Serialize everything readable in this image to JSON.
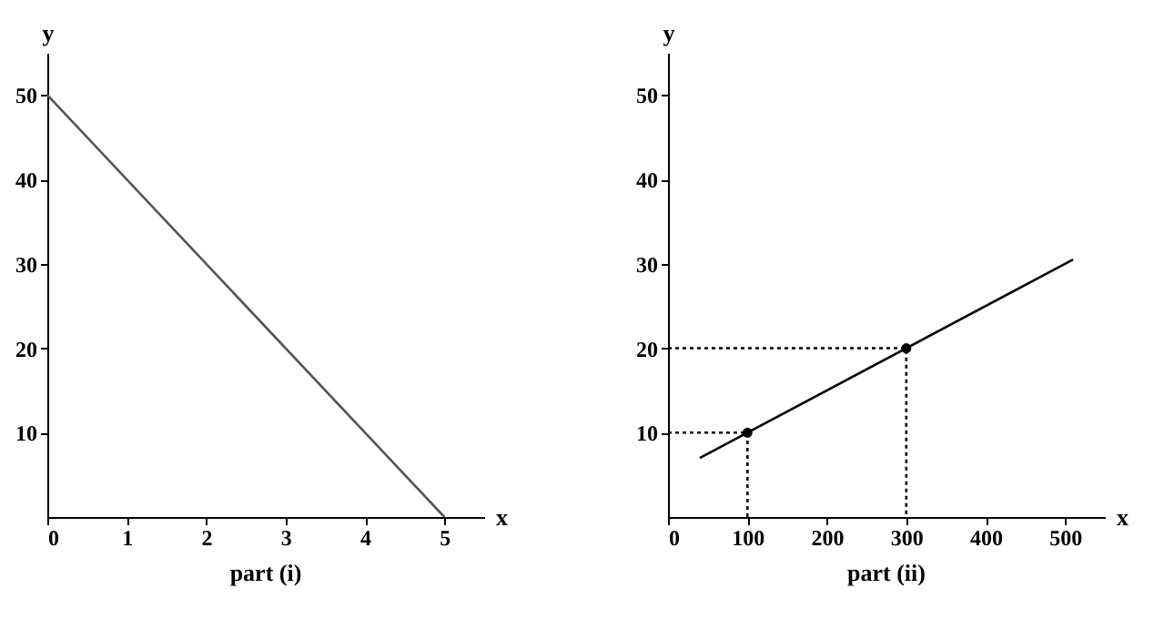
{
  "chart_data": [
    {
      "type": "line",
      "xlabel": "x",
      "ylabel": "y",
      "annotations": [
        "part (i)"
      ],
      "xlim": [
        0,
        5.5
      ],
      "ylim": [
        0,
        55
      ],
      "xticks": [
        0,
        1,
        2,
        3,
        4,
        5
      ],
      "yticks": [
        10,
        20,
        30,
        40,
        50
      ],
      "grid": false,
      "marker": "none",
      "series": [
        {
          "color": "#555555",
          "x": [
            0,
            5
          ],
          "values": [
            50,
            0
          ]
        }
      ]
    },
    {
      "type": "line",
      "xlabel": "x",
      "ylabel": "y",
      "annotations": [
        "part (ii)"
      ],
      "xlim": [
        0,
        550
      ],
      "ylim": [
        0,
        55
      ],
      "xticks": [
        0,
        100,
        200,
        300,
        400,
        500
      ],
      "yticks": [
        10,
        20,
        30,
        40,
        50
      ],
      "grid": false,
      "marker": "none",
      "series": [
        {
          "color": "#000000",
          "x": [
            40,
            510
          ],
          "values": [
            7,
            30.5
          ]
        },
        {
          "color": "#000000",
          "line_style": "dotted",
          "x": [
            0,
            100,
            100
          ],
          "values": [
            10,
            10,
            0
          ]
        },
        {
          "color": "#000000",
          "line_style": "dotted",
          "x": [
            0,
            300,
            300
          ],
          "values": [
            20,
            20,
            0
          ]
        },
        {
          "type": "scatter",
          "marker": "circle",
          "color": "#000000",
          "x": [
            100,
            300
          ],
          "values": [
            10,
            20
          ]
        }
      ]
    }
  ]
}
